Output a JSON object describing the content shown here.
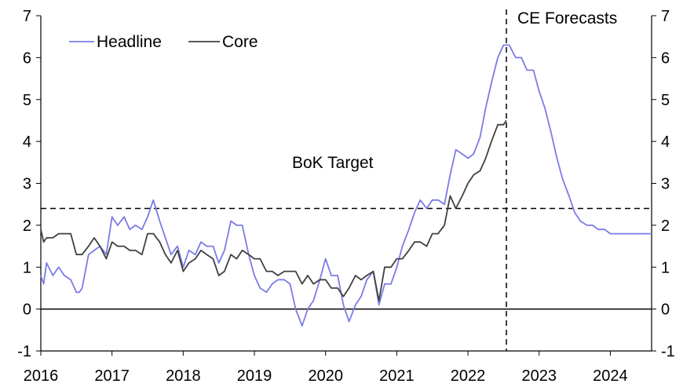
{
  "chart_data": {
    "type": "line",
    "title": "",
    "xlabel": "",
    "ylabel": "",
    "x_ticks": [
      "2016",
      "2017",
      "2018",
      "2019",
      "2020",
      "2021",
      "2022",
      "2023",
      "2024"
    ],
    "xlim": [
      2016.0,
      2024.58
    ],
    "ylim": [
      -1,
      7
    ],
    "y_ticks": [
      "-1",
      "0",
      "1",
      "2",
      "3",
      "4",
      "5",
      "6",
      "7"
    ],
    "grid": false,
    "legend_position": "top-left",
    "target_label": "BoK Target",
    "target_value": 2.4,
    "forecast_label": "CE Forecasts",
    "forecast_start": 2022.54,
    "series": [
      {
        "name": "Headline",
        "color": "#7b7be6",
        "x": [
          2016.0,
          2016.04,
          2016.08,
          2016.17,
          2016.25,
          2016.33,
          2016.42,
          2016.5,
          2016.54,
          2016.58,
          2016.67,
          2016.75,
          2016.83,
          2016.92,
          2017.0,
          2017.08,
          2017.17,
          2017.25,
          2017.33,
          2017.42,
          2017.5,
          2017.58,
          2017.67,
          2017.75,
          2017.83,
          2017.92,
          2018.0,
          2018.08,
          2018.17,
          2018.25,
          2018.33,
          2018.42,
          2018.5,
          2018.58,
          2018.67,
          2018.75,
          2018.83,
          2018.92,
          2019.0,
          2019.08,
          2019.17,
          2019.25,
          2019.33,
          2019.42,
          2019.5,
          2019.58,
          2019.67,
          2019.75,
          2019.83,
          2019.92,
          2020.0,
          2020.08,
          2020.17,
          2020.25,
          2020.33,
          2020.42,
          2020.5,
          2020.58,
          2020.67,
          2020.75,
          2020.83,
          2020.92,
          2021.0,
          2021.08,
          2021.17,
          2021.25,
          2021.33,
          2021.42,
          2021.5,
          2021.58,
          2021.67,
          2021.75,
          2021.83,
          2021.92,
          2022.0,
          2022.08,
          2022.17,
          2022.25,
          2022.33,
          2022.42,
          2022.5,
          2022.54,
          2022.58,
          2022.67,
          2022.75,
          2022.83,
          2022.92,
          2023.0,
          2023.08,
          2023.17,
          2023.25,
          2023.33,
          2023.42,
          2023.5,
          2023.58,
          2023.67,
          2023.75,
          2023.83,
          2023.92,
          2024.0,
          2024.25,
          2024.58
        ],
        "values": [
          0.8,
          0.6,
          1.1,
          0.8,
          1.0,
          0.8,
          0.7,
          0.4,
          0.4,
          0.5,
          1.3,
          1.4,
          1.5,
          1.3,
          2.2,
          2.0,
          2.2,
          1.9,
          2.0,
          1.9,
          2.2,
          2.6,
          2.1,
          1.7,
          1.3,
          1.5,
          1.0,
          1.4,
          1.3,
          1.6,
          1.5,
          1.5,
          1.1,
          1.4,
          2.1,
          2.0,
          2.0,
          1.3,
          0.8,
          0.5,
          0.4,
          0.6,
          0.7,
          0.7,
          0.6,
          0.0,
          -0.4,
          0.0,
          0.2,
          0.7,
          1.2,
          0.8,
          0.8,
          0.1,
          -0.3,
          0.1,
          0.3,
          0.7,
          0.9,
          0.1,
          0.6,
          0.6,
          1.0,
          1.5,
          1.9,
          2.3,
          2.6,
          2.4,
          2.6,
          2.6,
          2.5,
          3.2,
          3.8,
          3.7,
          3.6,
          3.7,
          4.1,
          4.8,
          5.4,
          6.0,
          6.3,
          6.3,
          6.3,
          6.0,
          6.0,
          5.7,
          5.7,
          5.2,
          4.8,
          4.2,
          3.6,
          3.1,
          2.7,
          2.3,
          2.1,
          2.0,
          2.0,
          1.9,
          1.9,
          1.8,
          1.8,
          1.8
        ]
      },
      {
        "name": "Core",
        "color": "#404040",
        "x": [
          2016.0,
          2016.04,
          2016.08,
          2016.17,
          2016.25,
          2016.33,
          2016.42,
          2016.5,
          2016.58,
          2016.67,
          2016.75,
          2016.83,
          2016.92,
          2017.0,
          2017.08,
          2017.17,
          2017.25,
          2017.33,
          2017.42,
          2017.5,
          2017.58,
          2017.67,
          2017.75,
          2017.83,
          2017.92,
          2018.0,
          2018.08,
          2018.17,
          2018.25,
          2018.33,
          2018.42,
          2018.5,
          2018.58,
          2018.67,
          2018.75,
          2018.83,
          2018.92,
          2019.0,
          2019.08,
          2019.17,
          2019.25,
          2019.33,
          2019.42,
          2019.5,
          2019.58,
          2019.67,
          2019.75,
          2019.83,
          2019.92,
          2020.0,
          2020.08,
          2020.17,
          2020.25,
          2020.33,
          2020.42,
          2020.5,
          2020.58,
          2020.67,
          2020.75,
          2020.83,
          2020.92,
          2021.0,
          2021.08,
          2021.17,
          2021.25,
          2021.33,
          2021.42,
          2021.5,
          2021.58,
          2021.67,
          2021.75,
          2021.83,
          2021.92,
          2022.0,
          2022.08,
          2022.17,
          2022.25,
          2022.33,
          2022.42,
          2022.5,
          2022.54
        ],
        "values": [
          1.9,
          1.6,
          1.7,
          1.7,
          1.8,
          1.8,
          1.8,
          1.3,
          1.3,
          1.5,
          1.7,
          1.5,
          1.2,
          1.6,
          1.5,
          1.5,
          1.4,
          1.4,
          1.3,
          1.8,
          1.8,
          1.6,
          1.3,
          1.1,
          1.4,
          0.9,
          1.1,
          1.2,
          1.4,
          1.3,
          1.2,
          0.8,
          0.9,
          1.3,
          1.2,
          1.4,
          1.3,
          1.2,
          1.2,
          0.9,
          0.9,
          0.8,
          0.9,
          0.9,
          0.9,
          0.6,
          0.8,
          0.6,
          0.7,
          0.7,
          0.5,
          0.5,
          0.3,
          0.5,
          0.8,
          0.7,
          0.8,
          0.9,
          0.2,
          1.0,
          1.0,
          1.2,
          1.2,
          1.4,
          1.6,
          1.6,
          1.5,
          1.8,
          1.8,
          2.0,
          2.7,
          2.4,
          2.7,
          3.0,
          3.2,
          3.3,
          3.6,
          4.0,
          4.4,
          4.4,
          4.5
        ]
      }
    ]
  }
}
